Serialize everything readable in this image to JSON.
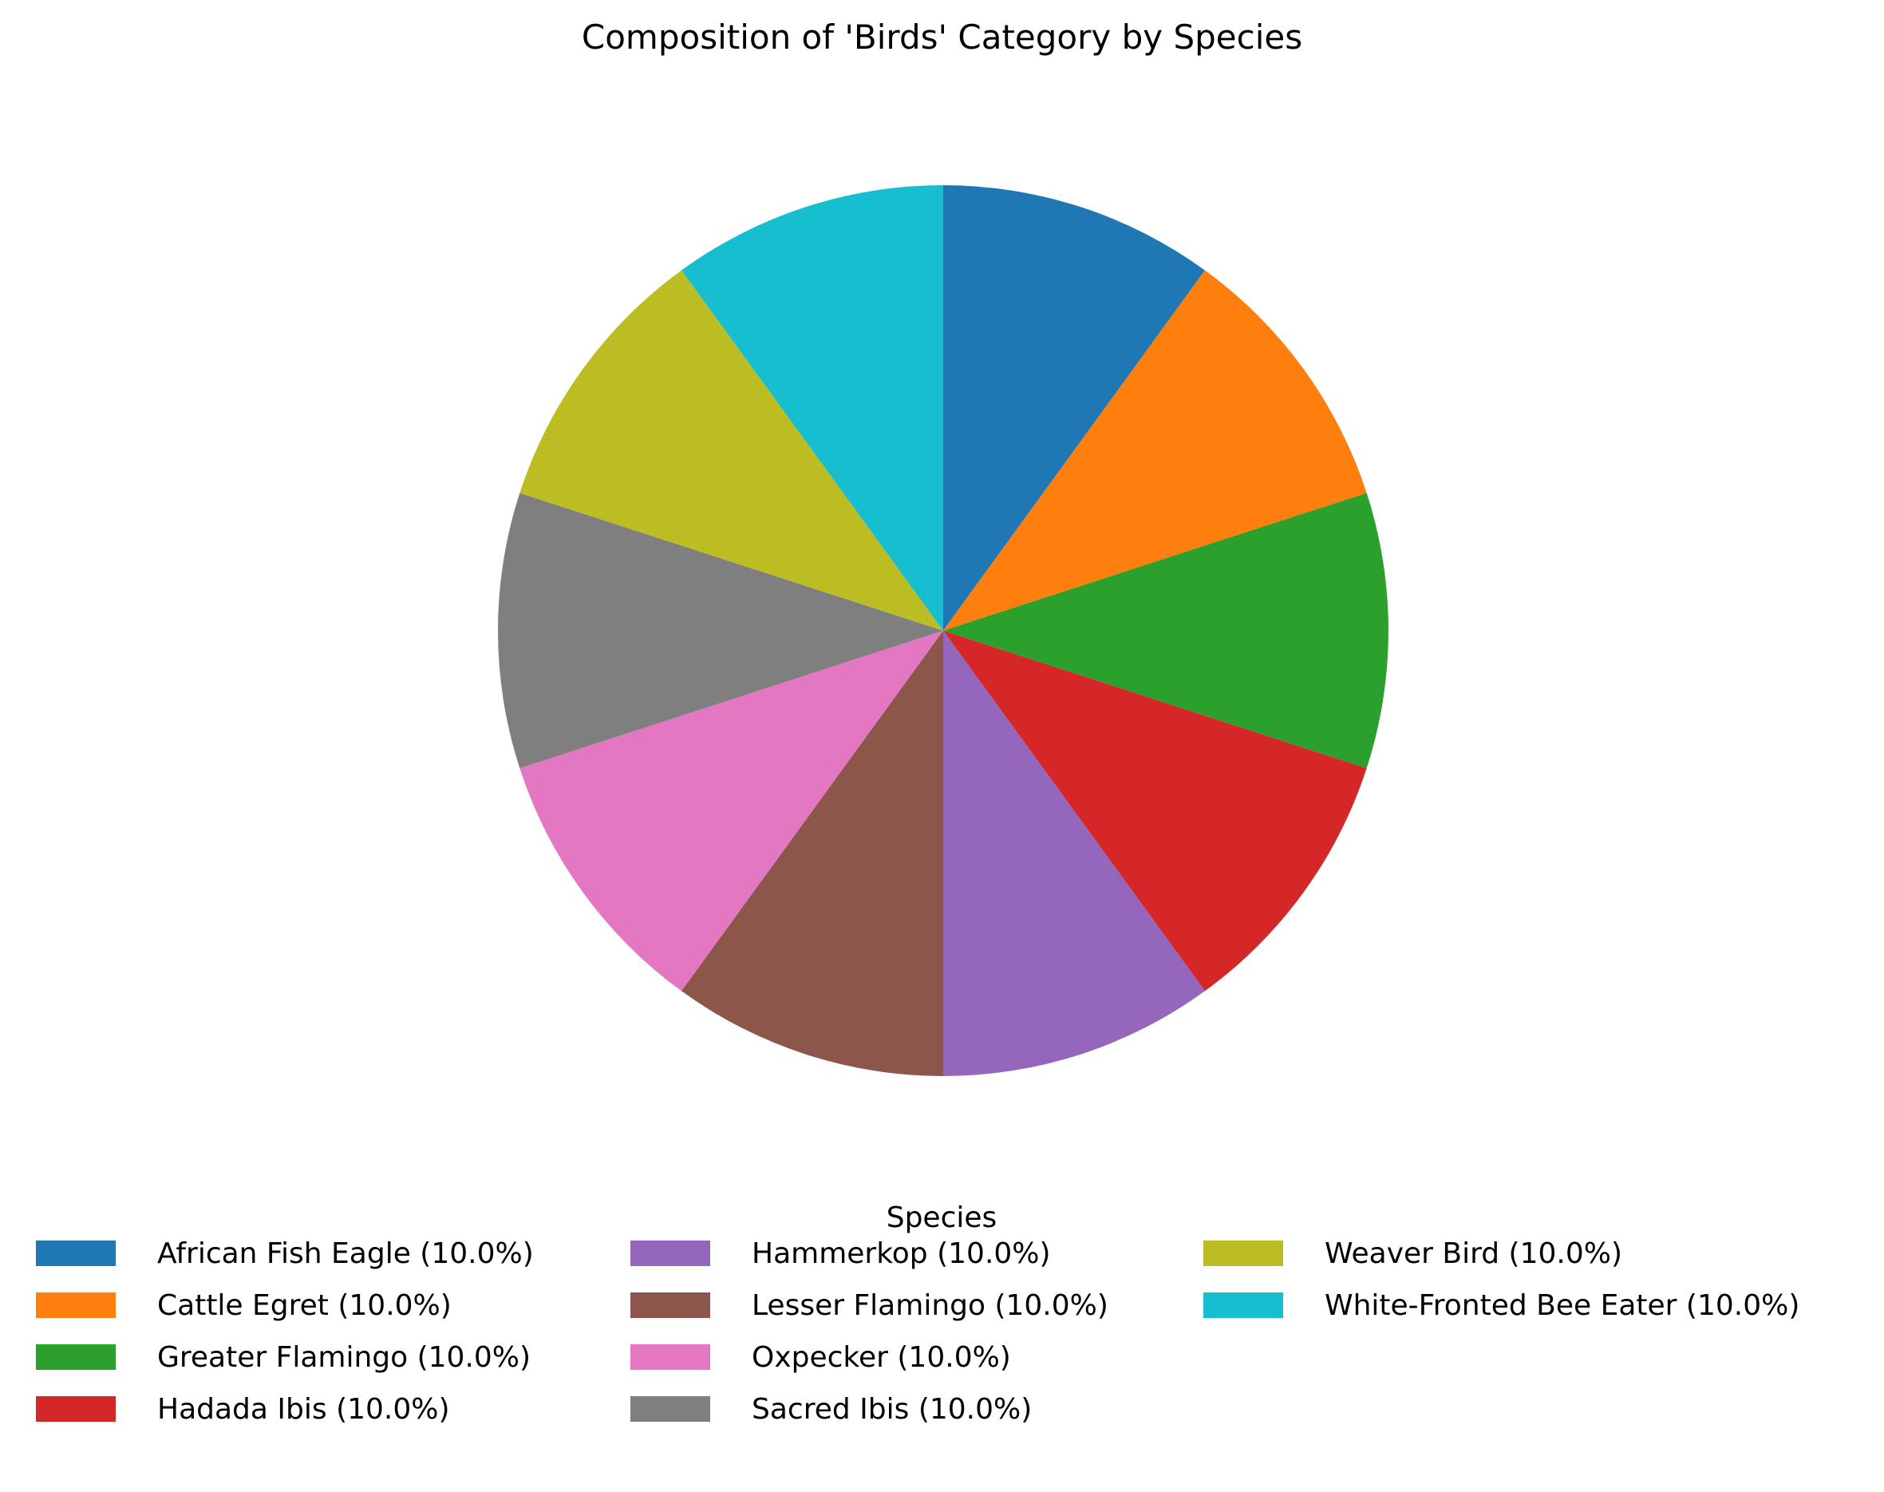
{
  "chart_data": {
    "type": "pie",
    "title": "Composition of 'Birds' Category by Species",
    "legend_title": "Species",
    "legend_placement": "bottom",
    "start_angle_deg": 90,
    "direction": "clockwise",
    "slices": [
      {
        "label": "African Fish Eagle",
        "value": 10.0,
        "legend_text": "African Fish Eagle (10.0%)",
        "color": "#1f77b4"
      },
      {
        "label": "Cattle Egret",
        "value": 10.0,
        "legend_text": "Cattle Egret (10.0%)",
        "color": "#ff7f0e"
      },
      {
        "label": "Greater Flamingo",
        "value": 10.0,
        "legend_text": "Greater Flamingo (10.0%)",
        "color": "#2ca02c"
      },
      {
        "label": "Hadada Ibis",
        "value": 10.0,
        "legend_text": "Hadada Ibis (10.0%)",
        "color": "#d62728"
      },
      {
        "label": "Hammerkop",
        "value": 10.0,
        "legend_text": "Hammerkop (10.0%)",
        "color": "#9467bd"
      },
      {
        "label": "Lesser Flamingo",
        "value": 10.0,
        "legend_text": "Lesser Flamingo (10.0%)",
        "color": "#8c564b"
      },
      {
        "label": "Oxpecker",
        "value": 10.0,
        "legend_text": "Oxpecker (10.0%)",
        "color": "#e377c2"
      },
      {
        "label": "Sacred Ibis",
        "value": 10.0,
        "legend_text": "Sacred Ibis (10.0%)",
        "color": "#7f7f7f"
      },
      {
        "label": "Weaver Bird",
        "value": 10.0,
        "legend_text": "Weaver Bird (10.0%)",
        "color": "#bcbd22"
      },
      {
        "label": "White-Fronted Bee Eater",
        "value": 10.0,
        "legend_text": "White-Fronted Bee Eater (10.0%)",
        "color": "#17becf"
      }
    ]
  }
}
